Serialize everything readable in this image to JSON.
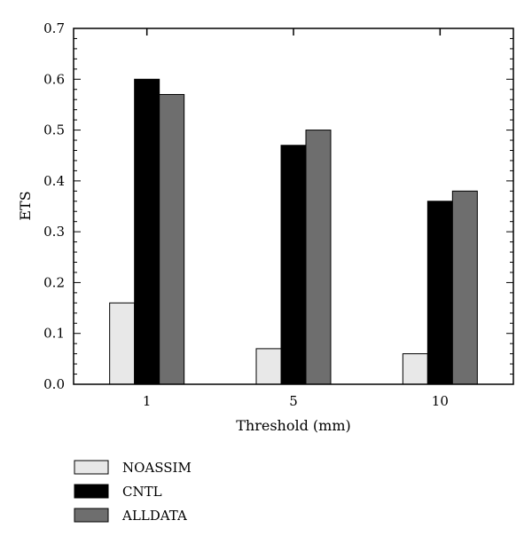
{
  "chart_data": {
    "type": "bar",
    "title": "",
    "xlabel": "Threshold (mm)",
    "ylabel": "ETS",
    "categories": [
      "1",
      "5",
      "10"
    ],
    "ylim": [
      0,
      0.7
    ],
    "yticks": [
      "0.0",
      "0.1",
      "0.2",
      "0.3",
      "0.4",
      "0.5",
      "0.6",
      "0.7"
    ],
    "grid": false,
    "legend_position": "bottom-left",
    "series": [
      {
        "name": "NOASSIM",
        "values": [
          0.16,
          0.07,
          0.06
        ],
        "color": "#e8e8e8"
      },
      {
        "name": "CNTL",
        "values": [
          0.6,
          0.47,
          0.36
        ],
        "color": "#000000"
      },
      {
        "name": "ALLDATA",
        "values": [
          0.57,
          0.5,
          0.38
        ],
        "color": "#6e6e6e"
      }
    ]
  }
}
